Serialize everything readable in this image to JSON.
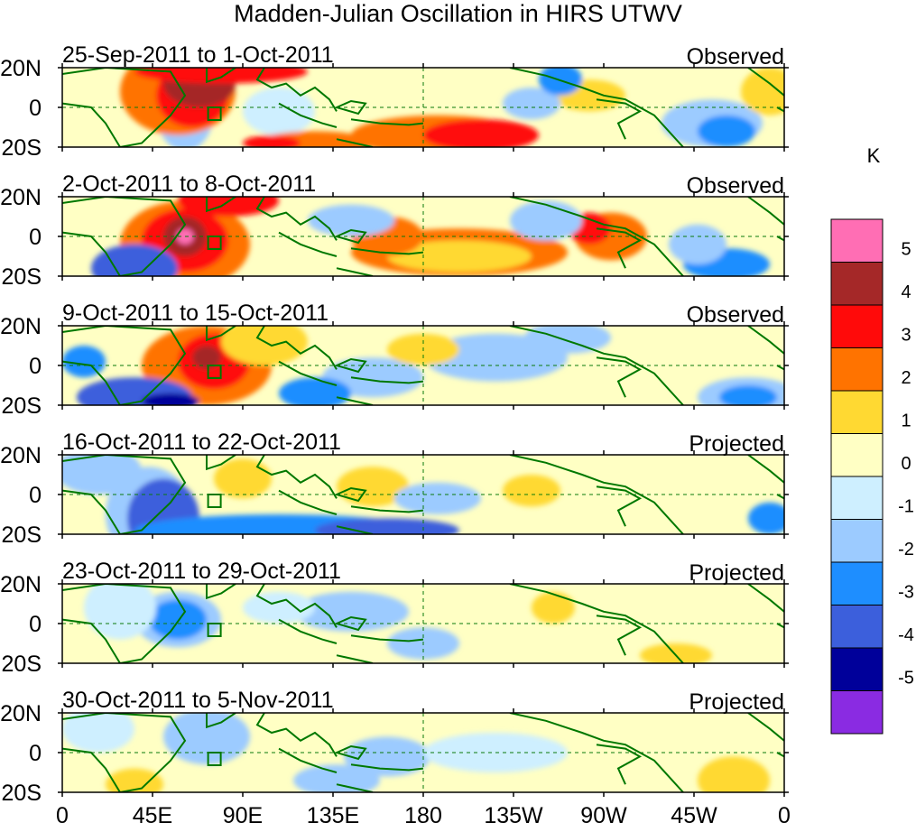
{
  "title": "Madden-Julian Oscillation in HIRS UTWV",
  "panels": [
    {
      "date_range": "25-Sep-2011 to 1-Oct-2011",
      "status": "Observed"
    },
    {
      "date_range": "2-Oct-2011 to 8-Oct-2011",
      "status": "Observed"
    },
    {
      "date_range": "9-Oct-2011 to 15-Oct-2011",
      "status": "Observed"
    },
    {
      "date_range": "16-Oct-2011 to 22-Oct-2011",
      "status": "Projected"
    },
    {
      "date_range": "23-Oct-2011 to 29-Oct-2011",
      "status": "Projected"
    },
    {
      "date_range": "30-Oct-2011 to 5-Nov-2011",
      "status": "Projected"
    }
  ],
  "lat_labels": [
    "20N",
    "0",
    "20S"
  ],
  "lon_labels": [
    "0",
    "45E",
    "90E",
    "135E",
    "180",
    "135W",
    "90W",
    "45W",
    "0"
  ],
  "colorbar": {
    "unit": "K",
    "labels": [
      "5",
      "4",
      "3",
      "2",
      "1",
      "0",
      "-1",
      "-2",
      "-3",
      "-4",
      "-5"
    ],
    "colors": [
      "#ff6eb4",
      "#a52828",
      "#ff0a0a",
      "#ff7300",
      "#ffd932",
      "#ffffc4",
      "#ceefff",
      "#9ccbff",
      "#1e8eff",
      "#3c5fdc",
      "#00009a",
      "#8a2be2"
    ]
  },
  "field_colors": {
    "land_outline": "#007800",
    "equator_line": "#0a7a0a"
  }
}
